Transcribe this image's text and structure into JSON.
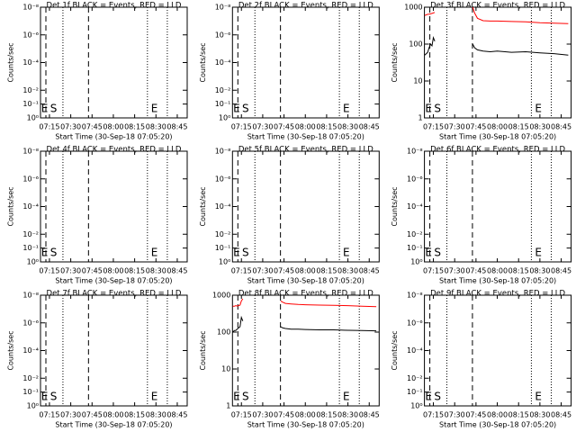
{
  "chart_data": [
    {
      "type": "line",
      "title": "Det 1f BLACK = Events, RED = LLD",
      "xlabel": "Start Time (30-Sep-18 07:05:20)",
      "ylabel": "Counts/sec",
      "log_y": true,
      "xlim": [
        8.7,
        112
      ],
      "ylim": [
        1,
        1e-08
      ],
      "xticks": [
        {
          "value": 15,
          "label": "07:15"
        },
        {
          "value": 30,
          "label": "07:30"
        },
        {
          "value": 45,
          "label": "07:45"
        },
        {
          "value": 60,
          "label": "08:00"
        },
        {
          "value": 75,
          "label": "08:15"
        },
        {
          "value": 90,
          "label": "08:30"
        },
        {
          "value": 105,
          "label": "08:45"
        }
      ],
      "yticks": [
        {
          "value": 1,
          "label": "10⁰"
        },
        {
          "value": 0.1,
          "label": "10⁻¹"
        },
        {
          "value": 0.01,
          "label": "10⁻²"
        },
        {
          "value": 0.0001,
          "label": "10⁻⁴"
        },
        {
          "value": 1e-06,
          "label": "10⁻⁶"
        },
        {
          "value": 1e-08,
          "label": "10⁻⁸"
        }
      ],
      "dashed_lines": [
        12.5,
        42.5
      ],
      "dotted_lines": [
        24.5,
        84,
        98
      ],
      "annotations": [
        {
          "text": "E",
          "x": 9.2
        },
        {
          "text": "S",
          "x": 15.5
        },
        {
          "text": "E",
          "x": 86.5
        }
      ],
      "x": [],
      "series": []
    },
    {
      "type": "line",
      "title": "Det 2f BLACK = Events, RED = LLD",
      "xlabel": "Start Time (30-Sep-18 07:05:20)",
      "ylabel": "Counts/sec",
      "log_y": true,
      "xlim": [
        8.7,
        112
      ],
      "ylim": [
        1,
        1e-08
      ],
      "xticks": [
        {
          "value": 15,
          "label": "07:15"
        },
        {
          "value": 30,
          "label": "07:30"
        },
        {
          "value": 45,
          "label": "07:45"
        },
        {
          "value": 60,
          "label": "08:00"
        },
        {
          "value": 75,
          "label": "08:15"
        },
        {
          "value": 90,
          "label": "08:30"
        },
        {
          "value": 105,
          "label": "08:45"
        }
      ],
      "yticks": [
        {
          "value": 1,
          "label": "10⁰"
        },
        {
          "value": 0.1,
          "label": "10⁻¹"
        },
        {
          "value": 0.01,
          "label": "10⁻²"
        },
        {
          "value": 0.0001,
          "label": "10⁻⁴"
        },
        {
          "value": 1e-06,
          "label": "10⁻⁶"
        },
        {
          "value": 1e-08,
          "label": "10⁻⁸"
        }
      ],
      "dashed_lines": [
        12.5,
        42.5
      ],
      "dotted_lines": [
        24.5,
        84,
        98
      ],
      "annotations": [
        {
          "text": "E",
          "x": 9.2
        },
        {
          "text": "S",
          "x": 15.5
        },
        {
          "text": "E",
          "x": 86.5
        }
      ],
      "x": [],
      "series": []
    },
    {
      "type": "line",
      "title": "Det 3f BLACK = Events, RED = LLD",
      "xlabel": "Start Time (30-Sep-18 07:05:20)",
      "ylabel": "Counts/sec",
      "log_y": true,
      "xlim": [
        8.7,
        112
      ],
      "ylim": [
        1,
        1000
      ],
      "xticks": [
        {
          "value": 15,
          "label": "07:15"
        },
        {
          "value": 30,
          "label": "07:30"
        },
        {
          "value": 45,
          "label": "07:45"
        },
        {
          "value": 60,
          "label": "08:00"
        },
        {
          "value": 75,
          "label": "08:15"
        },
        {
          "value": 90,
          "label": "08:30"
        },
        {
          "value": 105,
          "label": "08:45"
        }
      ],
      "yticks": [
        1,
        10,
        100,
        1000
      ],
      "dashed_lines": [
        12.5,
        42.5
      ],
      "dotted_lines": [
        24.5,
        84,
        98
      ],
      "annotations": [
        {
          "text": "E",
          "x": 9.2
        },
        {
          "text": "S",
          "x": 15.5
        },
        {
          "text": "E",
          "x": 86.5
        }
      ],
      "x": [
        8.9,
        10,
        11,
        12,
        13,
        14,
        15,
        16,
        30,
        42.7,
        44,
        46,
        50,
        55,
        60,
        70,
        80,
        90,
        100,
        110
      ],
      "series": [
        {
          "name": "RED = LLD",
          "color": "#ff0000",
          "values": [
            600,
            620,
            640,
            650,
            660,
            680,
            700,
            720,
            null,
            1000,
            700,
            500,
            430,
            420,
            420,
            410,
            400,
            380,
            370,
            360
          ]
        },
        {
          "name": "BLACK = Events",
          "color": "#000000",
          "values": [
            50,
            55,
            60,
            80,
            100,
            90,
            150,
            120,
            null,
            100,
            80,
            70,
            65,
            62,
            65,
            60,
            62,
            58,
            55,
            50
          ]
        }
      ]
    },
    {
      "type": "line",
      "title": "Det 4f BLACK = Events, RED = LLD",
      "xlabel": "Start Time (30-Sep-18 07:05:20)",
      "ylabel": "Counts/sec",
      "log_y": true,
      "xlim": [
        8.7,
        112
      ],
      "ylim": [
        1,
        1e-08
      ],
      "xticks": [
        {
          "value": 15,
          "label": "07:15"
        },
        {
          "value": 30,
          "label": "07:30"
        },
        {
          "value": 45,
          "label": "07:45"
        },
        {
          "value": 60,
          "label": "08:00"
        },
        {
          "value": 75,
          "label": "08:15"
        },
        {
          "value": 90,
          "label": "08:30"
        },
        {
          "value": 105,
          "label": "08:45"
        }
      ],
      "yticks": [
        {
          "value": 1,
          "label": "10⁰"
        },
        {
          "value": 0.1,
          "label": "10⁻¹"
        },
        {
          "value": 0.01,
          "label": "10⁻²"
        },
        {
          "value": 0.0001,
          "label": "10⁻⁴"
        },
        {
          "value": 1e-06,
          "label": "10⁻⁶"
        },
        {
          "value": 1e-08,
          "label": "10⁻⁸"
        }
      ],
      "dashed_lines": [
        12.5,
        42.5
      ],
      "dotted_lines": [
        24.5,
        84,
        98
      ],
      "annotations": [
        {
          "text": "E",
          "x": 9.2
        },
        {
          "text": "S",
          "x": 15.5
        },
        {
          "text": "E",
          "x": 86.5
        }
      ],
      "x": [],
      "series": []
    },
    {
      "type": "line",
      "title": "Det 5f BLACK = Events, RED = LLD",
      "xlabel": "Start Time (30-Sep-18 07:05:20)",
      "ylabel": "Counts/sec",
      "log_y": true,
      "xlim": [
        8.7,
        112
      ],
      "ylim": [
        1,
        1e-08
      ],
      "xticks": [
        {
          "value": 15,
          "label": "07:15"
        },
        {
          "value": 30,
          "label": "07:30"
        },
        {
          "value": 45,
          "label": "07:45"
        },
        {
          "value": 60,
          "label": "08:00"
        },
        {
          "value": 75,
          "label": "08:15"
        },
        {
          "value": 90,
          "label": "08:30"
        },
        {
          "value": 105,
          "label": "08:45"
        }
      ],
      "yticks": [
        {
          "value": 1,
          "label": "10⁰"
        },
        {
          "value": 0.1,
          "label": "10⁻¹"
        },
        {
          "value": 0.01,
          "label": "10⁻²"
        },
        {
          "value": 0.0001,
          "label": "10⁻⁴"
        },
        {
          "value": 1e-06,
          "label": "10⁻⁶"
        },
        {
          "value": 1e-08,
          "label": "10⁻⁸"
        }
      ],
      "dashed_lines": [
        12.5,
        42.5
      ],
      "dotted_lines": [
        24.5,
        84,
        98
      ],
      "annotations": [
        {
          "text": "E",
          "x": 9.2
        },
        {
          "text": "S",
          "x": 15.5
        },
        {
          "text": "E",
          "x": 86.5
        }
      ],
      "x": [],
      "series": []
    },
    {
      "type": "line",
      "title": "Det 6f BLACK = Events, RED = LLD",
      "xlabel": "Start Time (30-Sep-18 07:05:20)",
      "ylabel": "Counts/sec",
      "log_y": true,
      "xlim": [
        8.7,
        112
      ],
      "ylim": [
        1,
        1e-08
      ],
      "xticks": [
        {
          "value": 15,
          "label": "07:15"
        },
        {
          "value": 30,
          "label": "07:30"
        },
        {
          "value": 45,
          "label": "07:45"
        },
        {
          "value": 60,
          "label": "08:00"
        },
        {
          "value": 75,
          "label": "08:15"
        },
        {
          "value": 90,
          "label": "08:30"
        },
        {
          "value": 105,
          "label": "08:45"
        }
      ],
      "yticks": [
        {
          "value": 1,
          "label": "10⁰"
        },
        {
          "value": 0.1,
          "label": "10⁻¹"
        },
        {
          "value": 0.01,
          "label": "10⁻²"
        },
        {
          "value": 0.0001,
          "label": "10⁻⁴"
        },
        {
          "value": 1e-06,
          "label": "10⁻⁶"
        },
        {
          "value": 1e-08,
          "label": "10⁻⁸"
        }
      ],
      "dashed_lines": [
        12.5,
        42.5
      ],
      "dotted_lines": [
        24.5,
        84,
        98
      ],
      "annotations": [
        {
          "text": "E",
          "x": 9.2
        },
        {
          "text": "S",
          "x": 15.5
        },
        {
          "text": "E",
          "x": 86.5
        }
      ],
      "x": [],
      "series": []
    },
    {
      "type": "line",
      "title": "Det 7f BLACK = Events, RED = LLD",
      "xlabel": "Start Time (30-Sep-18 07:05:20)",
      "ylabel": "Counts/sec",
      "log_y": true,
      "xlim": [
        8.7,
        112
      ],
      "ylim": [
        1,
        1e-08
      ],
      "xticks": [
        {
          "value": 15,
          "label": "07:15"
        },
        {
          "value": 30,
          "label": "07:30"
        },
        {
          "value": 45,
          "label": "07:45"
        },
        {
          "value": 60,
          "label": "08:00"
        },
        {
          "value": 75,
          "label": "08:15"
        },
        {
          "value": 90,
          "label": "08:30"
        },
        {
          "value": 105,
          "label": "08:45"
        }
      ],
      "yticks": [
        {
          "value": 1,
          "label": "10⁰"
        },
        {
          "value": 0.1,
          "label": "10⁻¹"
        },
        {
          "value": 0.01,
          "label": "10⁻²"
        },
        {
          "value": 0.0001,
          "label": "10⁻⁴"
        },
        {
          "value": 1e-06,
          "label": "10⁻⁶"
        },
        {
          "value": 1e-08,
          "label": "10⁻⁸"
        }
      ],
      "dashed_lines": [
        12.5,
        42.5
      ],
      "dotted_lines": [
        24.5,
        84,
        98
      ],
      "annotations": [
        {
          "text": "E",
          "x": 9.2
        },
        {
          "text": "S",
          "x": 15.5
        },
        {
          "text": "E",
          "x": 86.5
        }
      ],
      "x": [],
      "series": []
    },
    {
      "type": "line",
      "title": "Det 8f BLACK = Events, RED = LLD",
      "xlabel": "Start Time (30-Sep-18 07:05:20)",
      "ylabel": "Counts/sec",
      "log_y": true,
      "xlim": [
        8.7,
        112
      ],
      "ylim": [
        1,
        1000
      ],
      "xticks": [
        {
          "value": 15,
          "label": "07:15"
        },
        {
          "value": 30,
          "label": "07:30"
        },
        {
          "value": 45,
          "label": "07:45"
        },
        {
          "value": 60,
          "label": "08:00"
        },
        {
          "value": 75,
          "label": "08:15"
        },
        {
          "value": 90,
          "label": "08:30"
        },
        {
          "value": 105,
          "label": "08:45"
        }
      ],
      "yticks": [
        1,
        10,
        100,
        1000
      ],
      "dashed_lines": [
        12.5,
        42.5
      ],
      "dotted_lines": [
        24.5,
        84,
        98
      ],
      "annotations": [
        {
          "text": "E",
          "x": 9.2
        },
        {
          "text": "S",
          "x": 15.5
        },
        {
          "text": "E",
          "x": 86.5
        }
      ],
      "x": [
        8.9,
        10,
        11,
        12,
        13,
        14,
        15,
        16,
        30,
        42.7,
        44,
        46,
        50,
        55,
        60,
        70,
        80,
        90,
        100,
        110
      ],
      "series": [
        {
          "name": "RED = LLD",
          "color": "#ff0000",
          "values": [
            500,
            500,
            520,
            510,
            520,
            540,
            700,
            800,
            null,
            700,
            650,
            600,
            580,
            560,
            550,
            540,
            530,
            520,
            500,
            490
          ]
        },
        {
          "name": "BLACK = Events",
          "color": "#000000",
          "values": [
            100,
            110,
            110,
            120,
            130,
            140,
            250,
            200,
            null,
            140,
            130,
            125,
            120,
            120,
            118,
            115,
            115,
            112,
            110,
            108
          ]
        }
      ]
    },
    {
      "type": "line",
      "title": "Det 9f BLACK = Events, RED = LLD",
      "xlabel": "Start Time (30-Sep-18 07:05:20)",
      "ylabel": "Counts/sec",
      "log_y": true,
      "xlim": [
        8.7,
        112
      ],
      "ylim": [
        1,
        1e-08
      ],
      "xticks": [
        {
          "value": 15,
          "label": "07:15"
        },
        {
          "value": 30,
          "label": "07:30"
        },
        {
          "value": 45,
          "label": "07:45"
        },
        {
          "value": 60,
          "label": "08:00"
        },
        {
          "value": 75,
          "label": "08:15"
        },
        {
          "value": 90,
          "label": "08:30"
        },
        {
          "value": 105,
          "label": "08:45"
        }
      ],
      "yticks": [
        {
          "value": 1,
          "label": "10⁰"
        },
        {
          "value": 0.1,
          "label": "10⁻¹"
        },
        {
          "value": 0.01,
          "label": "10⁻²"
        },
        {
          "value": 0.0001,
          "label": "10⁻⁴"
        },
        {
          "value": 1e-06,
          "label": "10⁻⁶"
        },
        {
          "value": 1e-08,
          "label": "10⁻⁸"
        }
      ],
      "dashed_lines": [
        12.5,
        42.5
      ],
      "dotted_lines": [
        24.5,
        84,
        98
      ],
      "annotations": [
        {
          "text": "E",
          "x": 9.2
        },
        {
          "text": "S",
          "x": 15.5
        },
        {
          "text": "E",
          "x": 86.5
        }
      ],
      "x": [],
      "series": []
    }
  ]
}
